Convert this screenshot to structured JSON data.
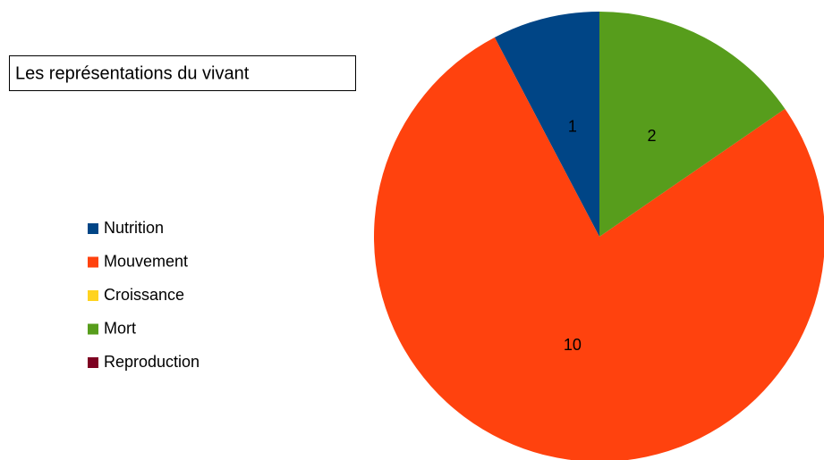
{
  "chart_data": {
    "type": "pie",
    "title": "Les représentations du vivant",
    "categories": [
      "Nutrition",
      "Mouvement",
      "Croissance",
      "Mort",
      "Reproduction"
    ],
    "values": [
      1,
      10,
      0,
      2,
      0
    ],
    "colors": [
      "#004586",
      "#ff420e",
      "#ffd320",
      "#579d1c",
      "#7e0021"
    ],
    "legend": "left"
  }
}
